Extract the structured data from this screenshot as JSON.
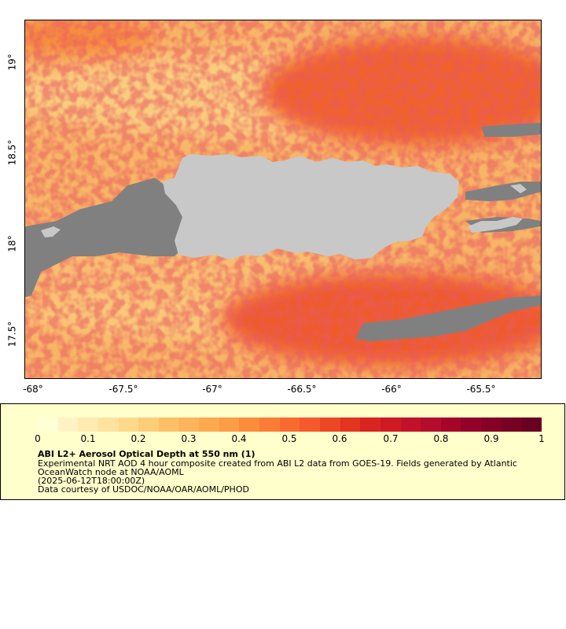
{
  "map": {
    "longitude_ticks": [
      "-68°",
      "-67.5°",
      "-67°",
      "-66.5°",
      "-66°",
      "-65.5°"
    ],
    "latitude_ticks": [
      "19°",
      "18.5°",
      "18°",
      "17.5°"
    ],
    "colors": {
      "land": "#c8c8c8",
      "no_data": "#808080",
      "low": "#f7c873",
      "mid": "#f79a4e",
      "high": "#c9121f"
    }
  },
  "legend": {
    "colorbar_ticks": [
      "0",
      "0.1",
      "0.2",
      "0.3",
      "0.4",
      "0.5",
      "0.6",
      "0.7",
      "0.8",
      "0.9",
      "1"
    ],
    "colorbar_colors": [
      "#ffffd5",
      "#fff3c4",
      "#ffebb0",
      "#fee3a0",
      "#fed98b",
      "#fecd78",
      "#fec067",
      "#feb45c",
      "#fda94f",
      "#fd9d45",
      "#fc8d3c",
      "#fb7c36",
      "#f96a30",
      "#f45a2a",
      "#ec4725",
      "#e33420",
      "#da241f",
      "#cf1a22",
      "#c2122a",
      "#b40c2c",
      "#a5052a",
      "#93002a",
      "#840026",
      "#750024",
      "#6a0021"
    ],
    "title": "ABI L2+ Aerosol Optical Depth at 550 nm (1)",
    "line1": "Experimental NRT AOD 4 hour composite created from ABI L2 data from GOES-19. Fields generated by Atlantic",
    "line2": "OceanWatch node at NOAA/AOML",
    "line3": "(2025-06-12T18:00:00Z)",
    "line4": "Data courtesy of USDOC/NOAA/OAR/AOML/PHOD"
  }
}
